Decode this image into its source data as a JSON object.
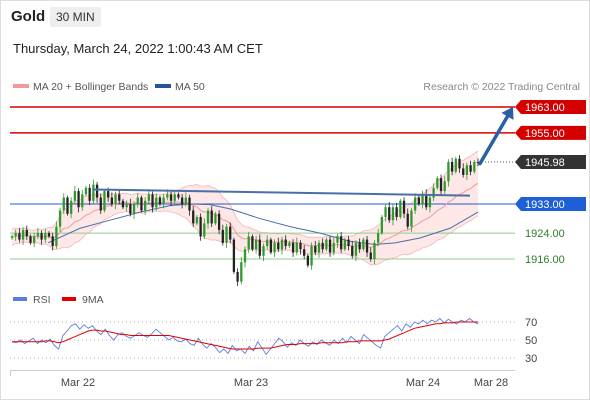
{
  "header": {
    "instrument": "Gold",
    "timeframe": "30 MIN",
    "datetime": "Thursday, March 24, 2022 1:00:43 AM CET"
  },
  "copyright": "Research © 2022 Trading Central",
  "colors": {
    "up": "#2e9a2e",
    "down": "#222222",
    "bb": "#f29a9a",
    "bb_fill": "#fde3e3",
    "ma50": "#4a6fa8",
    "resistance": "#d40000",
    "pivot": "#1f5fd6",
    "support": "#8fcf8f",
    "arrow": "#2a5fa8",
    "rsi": "#5b7fe0",
    "rsi_ma": "#e00000"
  },
  "chart_data": [
    {
      "type": "candlestick",
      "legend": [
        {
          "label": "MA 20 + Bollinger Bands",
          "color": "#f29a9a"
        },
        {
          "label": "MA 50",
          "color": "#4a6fa8"
        }
      ],
      "legend_placement": "top-left",
      "ylim": [
        1907,
        1968
      ],
      "x_ticks": [
        "Mar 22",
        "Mar 23",
        "Mar 24",
        "Mar 28"
      ],
      "levels": [
        {
          "value": 1963.0,
          "label": "1963.00",
          "kind": "resistance"
        },
        {
          "value": 1955.0,
          "label": "1955.00",
          "kind": "resistance"
        },
        {
          "value": 1945.98,
          "label": "1945.98",
          "kind": "last"
        },
        {
          "value": 1933.0,
          "label": "1933.00",
          "kind": "pivot"
        },
        {
          "value": 1924.0,
          "label": "1924.00",
          "kind": "support"
        },
        {
          "value": 1916.0,
          "label": "1916.00",
          "kind": "support"
        }
      ],
      "close": [
        1923,
        1924,
        1922,
        1925,
        1923,
        1921,
        1923,
        1924,
        1922,
        1924,
        1923,
        1920,
        1926,
        1931,
        1935,
        1930,
        1934,
        1937,
        1932,
        1936,
        1938,
        1934,
        1939,
        1935,
        1931,
        1937,
        1935,
        1933,
        1936,
        1934,
        1932,
        1933,
        1930,
        1933,
        1935,
        1931,
        1934,
        1936,
        1932,
        1935,
        1933,
        1935,
        1936,
        1934,
        1936,
        1935,
        1933,
        1935,
        1931,
        1927,
        1929,
        1923,
        1927,
        1931,
        1927,
        1930,
        1925,
        1921,
        1926,
        1922,
        1912,
        1909,
        1915,
        1919,
        1923,
        1919,
        1922,
        1917,
        1920,
        1922,
        1918,
        1921,
        1919,
        1922,
        1920,
        1921,
        1918,
        1921,
        1919,
        1917,
        1914,
        1920,
        1918,
        1921,
        1919,
        1922,
        1918,
        1921,
        1923,
        1919,
        1922,
        1920,
        1917,
        1921,
        1919,
        1922,
        1918,
        1916,
        1921,
        1924,
        1929,
        1932,
        1928,
        1932,
        1929,
        1934,
        1930,
        1926,
        1931,
        1935,
        1933,
        1936,
        1932,
        1935,
        1938,
        1941,
        1937,
        1940,
        1946,
        1943,
        1947,
        1944,
        1942,
        1945,
        1943,
        1946,
        1945.98
      ],
      "ma20": [
        1922.7,
        1923.2,
        1923.0,
        1923.4,
        1923.3,
        1923.0,
        1922.9,
        1923.1,
        1922.8,
        1923.0,
        1923.0,
        1922.4,
        1923.1,
        1924.2,
        1925.5,
        1925.6,
        1926.4,
        1927.5,
        1927.8,
        1928.6,
        1929.6,
        1929.9,
        1930.8,
        1931.2,
        1931.3,
        1932.1,
        1932.4,
        1932.7,
        1933.1,
        1933.3,
        1933.4,
        1933.5,
        1933.1,
        1933.2,
        1933.4,
        1933.1,
        1933.2,
        1933.4,
        1933.2,
        1933.4,
        1933.3,
        1933.4,
        1933.6,
        1933.5,
        1933.7,
        1933.6,
        1933.5,
        1933.6,
        1933.1,
        1932.5,
        1932.1,
        1931.0,
        1930.5,
        1930.5,
        1930.0,
        1929.9,
        1929.1,
        1928.1,
        1927.8,
        1927.0,
        1925.2,
        1923.4,
        1922.6,
        1922.2,
        1922.4,
        1922.0,
        1921.9,
        1921.4,
        1921.4,
        1921.5,
        1921.2,
        1921.3,
        1921.1,
        1921.4,
        1921.3,
        1921.3,
        1921.1,
        1921.1,
        1920.9,
        1920.6,
        1920.1,
        1920.2,
        1920.1,
        1920.2,
        1920.1,
        1920.4,
        1920.1,
        1920.2,
        1920.5,
        1920.2,
        1920.4,
        1920.3,
        1919.9,
        1920.1,
        1920.0,
        1920.2,
        1919.9,
        1919.6,
        1919.9,
        1920.4,
        1921.2,
        1922.1,
        1922.4,
        1923.1,
        1923.5,
        1924.4,
        1924.8,
        1924.9,
        1925.5,
        1926.4,
        1927.0,
        1927.8,
        1928.3,
        1929.0,
        1929.9,
        1931.0,
        1931.6,
        1932.4,
        1933.6,
        1934.2,
        1935.3,
        1936.0,
        1936.5,
        1937.3,
        1937.8,
        1938.7,
        1939.4
      ],
      "bb_width": [
        2.5,
        2.4,
        2.3,
        2.2,
        2.1,
        2.0,
        2.0,
        2.1,
        2.2,
        2.4,
        2.8,
        3.4,
        4.2,
        5.0,
        5.8,
        6.2,
        6.4,
        6.5,
        6.4,
        6.2,
        6.0,
        5.6,
        5.2,
        4.8,
        4.4,
        4.0,
        3.7,
        3.4,
        3.2,
        3.0,
        2.9,
        2.8,
        2.8,
        2.9,
        3.0,
        3.0,
        2.9,
        2.8,
        2.7,
        2.6,
        2.6,
        2.6,
        2.8,
        3.0,
        3.4,
        3.8,
        4.3,
        4.9,
        5.6,
        6.3,
        7.0,
        7.6,
        8.0,
        8.2,
        8.2,
        8.0,
        7.6,
        7.0,
        6.4,
        5.8,
        5.2,
        4.6,
        4.2,
        3.8,
        3.5,
        3.2,
        3.0,
        2.9,
        2.8,
        2.7,
        2.6,
        2.6,
        2.6,
        2.6,
        2.6,
        2.6,
        2.6,
        2.6,
        2.6,
        2.6,
        2.6,
        2.6,
        2.6,
        2.6,
        2.6,
        2.6,
        2.6,
        2.6,
        2.6,
        2.6,
        2.7,
        2.9,
        3.2,
        3.6,
        4.0,
        4.5,
        5.0,
        5.4,
        5.7,
        6.0,
        6.2,
        6.4,
        6.6,
        6.8,
        7.0,
        7.2,
        7.4,
        7.6,
        7.8,
        8.0,
        8.2,
        8.4,
        8.6,
        8.8,
        9.0,
        9.2,
        9.4,
        9.6,
        9.8,
        10.0,
        10.0,
        10.0,
        10.0,
        10.0,
        10.0,
        10.0,
        10.0
      ],
      "ma50_curve": [
        [
          48,
          1921.0
        ],
        [
          80,
          1925.5
        ],
        [
          110,
          1928.0
        ],
        [
          140,
          1930.5
        ],
        [
          170,
          1932.5
        ],
        [
          190,
          1933.0
        ],
        [
          210,
          1932.8
        ],
        [
          230,
          1931.5
        ],
        [
          260,
          1928.5
        ],
        [
          290,
          1926.0
        ],
        [
          320,
          1924.0
        ],
        [
          350,
          1921.5
        ],
        [
          375,
          1920.5
        ],
        [
          395,
          1921.0
        ],
        [
          420,
          1922.5
        ],
        [
          450,
          1925.5
        ],
        [
          478,
          1930.5
        ]
      ],
      "trendline": [
        [
          93,
          1937.5
        ],
        [
          470,
          1935.6
        ]
      ],
      "arrow": [
        [
          480,
          1945.5
        ],
        [
          512,
          1962.5
        ]
      ]
    },
    {
      "type": "line",
      "name": "RSI panel",
      "legend": [
        {
          "label": "RSI",
          "color": "#5b7fe0"
        },
        {
          "label": "9MA",
          "color": "#e00000"
        }
      ],
      "ylim": [
        20,
        80
      ],
      "y_ticks": [
        70,
        50,
        30
      ],
      "rsi": [
        48,
        47,
        50,
        46,
        49,
        52,
        46,
        50,
        47,
        51,
        44,
        40,
        55,
        60,
        66,
        68,
        62,
        67,
        63,
        66,
        60,
        56,
        62,
        55,
        50,
        56,
        58,
        54,
        52,
        55,
        58,
        55,
        53,
        57,
        62,
        58,
        54,
        50,
        53,
        49,
        48,
        51,
        46,
        44,
        52,
        45,
        41,
        46,
        42,
        36,
        40,
        35,
        44,
        38,
        40,
        35,
        43,
        38,
        48,
        41,
        34,
        40,
        46,
        52,
        48,
        42,
        47,
        44,
        50,
        46,
        43,
        48,
        45,
        50,
        47,
        44,
        50,
        46,
        52,
        47,
        54,
        50,
        46,
        56,
        52,
        48,
        44,
        41,
        54,
        58,
        62,
        66,
        60,
        68,
        64,
        70,
        68,
        72,
        68,
        72,
        70,
        74,
        69,
        73,
        70,
        68,
        72,
        70,
        74,
        70,
        68
      ],
      "rsi_ma": [
        48,
        48,
        48,
        48,
        48,
        48,
        48,
        48,
        49,
        49,
        48,
        47,
        48,
        50,
        52,
        54,
        56,
        58,
        60,
        61,
        61,
        60,
        60,
        59,
        58,
        57,
        56,
        56,
        55,
        55,
        55,
        55,
        55,
        55,
        55,
        55,
        55,
        55,
        54,
        53,
        52,
        51,
        50,
        49,
        48,
        47,
        46,
        45,
        44,
        43,
        42,
        41,
        40,
        40,
        40,
        40,
        40,
        40,
        41,
        41,
        41,
        41,
        42,
        43,
        44,
        45,
        45,
        45,
        46,
        46,
        46,
        46,
        46,
        47,
        47,
        47,
        47,
        47,
        47,
        48,
        48,
        48,
        49,
        49,
        49,
        49,
        49,
        49,
        50,
        51,
        53,
        55,
        57,
        59,
        61,
        63,
        64,
        65,
        66,
        67,
        68,
        68,
        69,
        69,
        69,
        70,
        70,
        70,
        70,
        70,
        70
      ]
    }
  ]
}
